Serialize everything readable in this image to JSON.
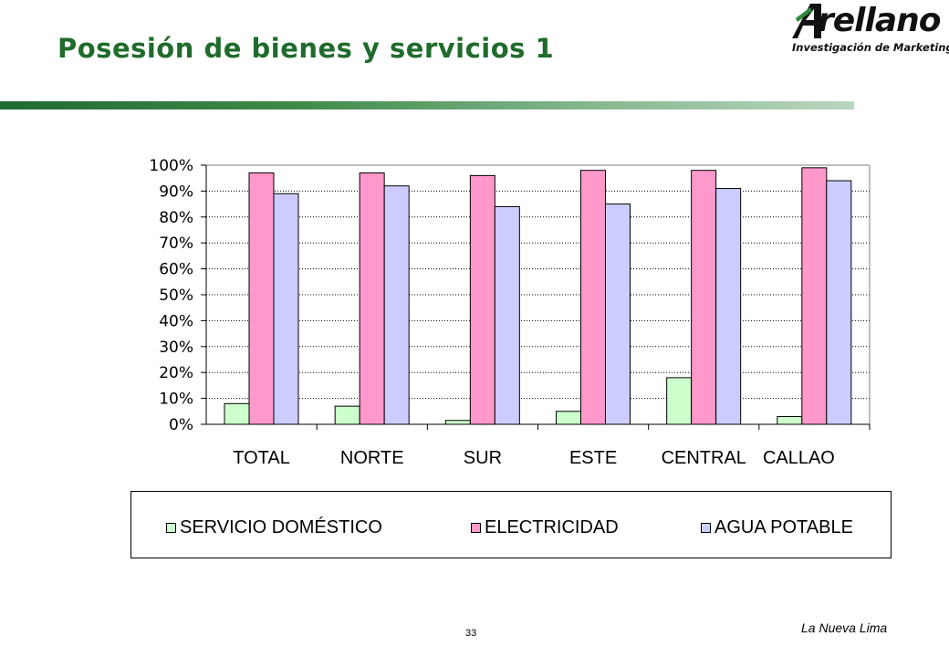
{
  "slide": {
    "title": "Posesión de bienes y servicios 1",
    "footer": "La Nueva Lima",
    "page_number": "33"
  },
  "logo": {
    "wordmark": "rellano",
    "tagline": "Investigación de Marketing"
  },
  "colors": {
    "title": "#1f6b2c",
    "servicio": "#ccffcc",
    "electricidad": "#ff99cc",
    "agua": "#ccccff"
  },
  "chart_data": {
    "type": "bar",
    "title": "",
    "xlabel": "",
    "ylabel": "",
    "categories": [
      "TOTAL",
      "NORTE",
      "SUR",
      "ESTE",
      "CENTRAL",
      "CALLAO"
    ],
    "series": [
      {
        "name": "SERVICIO DOMÉSTICO",
        "color": "#ccffcc",
        "values": [
          8,
          7,
          1.5,
          5,
          18,
          3
        ]
      },
      {
        "name": "ELECTRICIDAD",
        "color": "#ff99cc",
        "values": [
          97,
          97,
          96,
          98,
          98,
          99
        ]
      },
      {
        "name": "AGUA POTABLE",
        "color": "#ccccff",
        "values": [
          89,
          92,
          84,
          85,
          91,
          94
        ]
      }
    ],
    "ylim": [
      0,
      100
    ],
    "yticks": [
      "0%",
      "10%",
      "20%",
      "30%",
      "40%",
      "50%",
      "60%",
      "70%",
      "80%",
      "90%",
      "100%"
    ],
    "grid": true,
    "legend": "bottom"
  }
}
